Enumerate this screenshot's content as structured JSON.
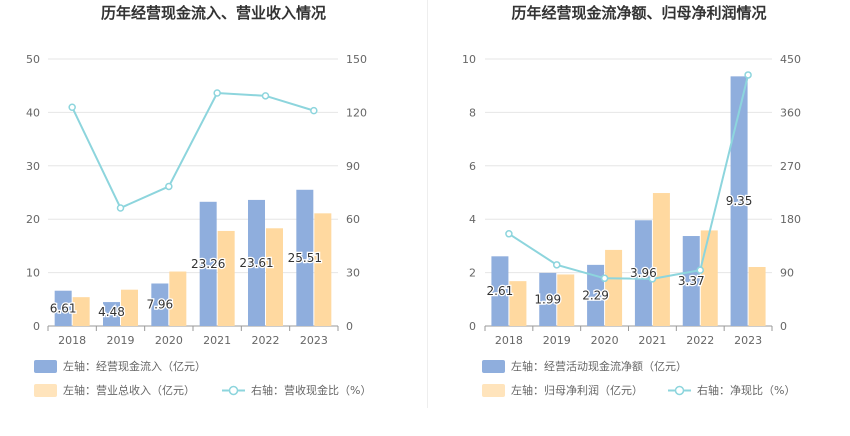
{
  "colors": {
    "bar_primary": "#8FAEDD",
    "bar_secondary": "#FFD9A0",
    "line": "#8DD5DD",
    "grid": "#E6E6E6",
    "axis_text": "#666666"
  },
  "chart_data": [
    {
      "type": "bar",
      "title": "历年经营现金流入、营业收入情况",
      "categories": [
        "2018",
        "2019",
        "2020",
        "2021",
        "2022",
        "2023"
      ],
      "series": [
        {
          "name": "左轴：经营现金流入（亿元）",
          "axis": "left",
          "kind": "bar",
          "values": [
            6.61,
            4.48,
            7.96,
            23.26,
            23.61,
            25.51
          ],
          "labels": [
            "6.61",
            "4.48",
            "7.96",
            "23.26",
            "23.61",
            "25.51"
          ]
        },
        {
          "name": "左轴：营业总收入（亿元）",
          "axis": "left",
          "kind": "bar",
          "values": [
            5.4,
            6.8,
            10.2,
            17.8,
            18.3,
            21.1
          ]
        },
        {
          "name": "右轴：营收现金比（%）",
          "axis": "right",
          "kind": "line",
          "values": [
            122.9,
            66.3,
            78.4,
            130.9,
            129.3,
            121.0
          ]
        }
      ],
      "left_axis": {
        "min": 0,
        "max": 50,
        "ticks": [
          "0",
          "10",
          "20",
          "30",
          "40",
          "50"
        ]
      },
      "right_axis": {
        "min": 0,
        "max": 150,
        "ticks": [
          "0",
          "30",
          "60",
          "90",
          "120",
          "150"
        ]
      },
      "legend": [
        {
          "label": "左轴：经营现金流入（亿元）",
          "kind": "bar",
          "series": 0
        },
        {
          "label": "左轴：营业总收入（亿元）",
          "kind": "bar",
          "series": 1
        },
        {
          "label": "右轴：营收现金比（%）",
          "kind": "line",
          "series": 2
        }
      ]
    },
    {
      "type": "bar",
      "title": "历年经营现金流净额、归母净利润情况",
      "categories": [
        "2018",
        "2019",
        "2020",
        "2021",
        "2022",
        "2023"
      ],
      "series": [
        {
          "name": "左轴：经营活动现金流净额（亿元）",
          "axis": "left",
          "kind": "bar",
          "values": [
            2.61,
            1.99,
            2.29,
            3.96,
            3.37,
            9.35
          ],
          "labels": [
            "2.61",
            "1.99",
            "2.29",
            "3.96",
            "3.37",
            "9.35"
          ]
        },
        {
          "name": "左轴：归母净利润（亿元）",
          "axis": "left",
          "kind": "bar",
          "values": [
            1.68,
            1.93,
            2.85,
            4.98,
            3.58,
            2.21
          ]
        },
        {
          "name": "右轴：净现比（%）",
          "axis": "right",
          "kind": "line",
          "values": [
            155.4,
            103.1,
            80.4,
            79.5,
            94.1,
            423.1
          ]
        }
      ],
      "left_axis": {
        "min": 0,
        "max": 10,
        "ticks": [
          "0",
          "2",
          "4",
          "6",
          "8",
          "10"
        ]
      },
      "right_axis": {
        "min": 0,
        "max": 450,
        "ticks": [
          "0",
          "90",
          "180",
          "270",
          "360",
          "450"
        ]
      },
      "legend": [
        {
          "label": "左轴：经营活动现金流净额（亿元）",
          "kind": "bar",
          "series": 0
        },
        {
          "label": "左轴：归母净利润（亿元）",
          "kind": "bar",
          "series": 1
        },
        {
          "label": "右轴：净现比（%）",
          "kind": "line",
          "series": 2
        }
      ]
    }
  ]
}
